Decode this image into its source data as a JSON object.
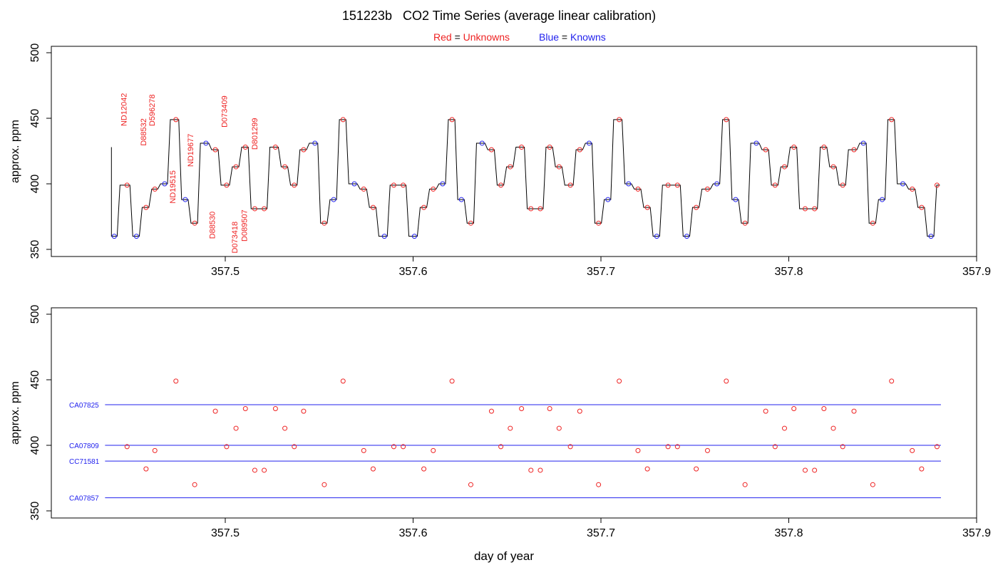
{
  "title": "151223b   CO2 Time Series (average linear calibration)",
  "legend": {
    "unknowns": {
      "color_word": "Red",
      "eq": " = ",
      "label": "Unknowns",
      "color": "#ee2222"
    },
    "knowns": {
      "color_word": "Blue",
      "eq": " = ",
      "label": "Knowns",
      "color": "#2222ee"
    }
  },
  "colors": {
    "unknown": "#ee2222",
    "known": "#2222ee",
    "trace": "#000000",
    "axis": "#000000"
  },
  "chart_data": [
    {
      "type": "line",
      "title": "",
      "xlabel": "",
      "ylabel": "approx. ppm",
      "xlim": [
        357.4,
        357.9
      ],
      "ylim": [
        345,
        502
      ],
      "xticks": [
        "357.5",
        "357.6",
        "357.7",
        "357.8",
        "357.9"
      ],
      "yticks": [
        "350",
        "400",
        "450",
        "500"
      ],
      "levels": [
        {
          "start": 357.4394,
          "end": 357.4432,
          "value": 360,
          "kind": "known"
        },
        {
          "start": 357.4432,
          "end": 357.45,
          "value": 399,
          "kind": "unknown"
        },
        {
          "start": 357.45,
          "end": 357.455,
          "value": 360,
          "kind": "known"
        },
        {
          "start": 357.455,
          "end": 357.4601,
          "value": 382,
          "kind": "unknown"
        },
        {
          "start": 357.4601,
          "end": 357.4648,
          "value": 396,
          "kind": "unknown"
        },
        {
          "start": 357.4648,
          "end": 357.47,
          "value": 400,
          "kind": "known"
        },
        {
          "start": 357.47,
          "end": 357.476,
          "value": 449,
          "kind": "unknown"
        },
        {
          "start": 357.476,
          "end": 357.481,
          "value": 388,
          "kind": "known"
        },
        {
          "start": 357.481,
          "end": 357.486,
          "value": 370,
          "kind": "unknown"
        },
        {
          "start": 357.486,
          "end": 357.492,
          "value": 431,
          "kind": "known"
        },
        {
          "start": 357.492,
          "end": 357.497,
          "value": 426,
          "kind": "unknown"
        },
        {
          "start": 357.497,
          "end": 357.503,
          "value": 399,
          "kind": "unknown"
        },
        {
          "start": 357.503,
          "end": 357.508,
          "value": 413,
          "kind": "unknown"
        },
        {
          "start": 357.508,
          "end": 357.513,
          "value": 428,
          "kind": "unknown"
        },
        {
          "start": 357.513,
          "end": 357.518,
          "value": 381,
          "kind": "unknown"
        },
        {
          "start": 357.518,
          "end": 357.523,
          "value": 381,
          "kind": "unknown"
        },
        {
          "start": 357.523,
          "end": 357.529,
          "value": 428,
          "kind": "unknown"
        },
        {
          "start": 357.529,
          "end": 357.534,
          "value": 413,
          "kind": "unknown"
        },
        {
          "start": 357.534,
          "end": 357.539,
          "value": 399,
          "kind": "unknown"
        },
        {
          "start": 357.539,
          "end": 357.544,
          "value": 426,
          "kind": "unknown"
        },
        {
          "start": 357.544,
          "end": 357.55,
          "value": 431,
          "kind": "known"
        },
        {
          "start": 357.55,
          "end": 357.555,
          "value": 370,
          "kind": "unknown"
        },
        {
          "start": 357.555,
          "end": 357.56,
          "value": 388,
          "kind": "known"
        },
        {
          "start": 357.56,
          "end": 357.565,
          "value": 449,
          "kind": "unknown"
        },
        {
          "start": 357.565,
          "end": 357.571,
          "value": 400,
          "kind": "known"
        },
        {
          "start": 357.571,
          "end": 357.576,
          "value": 396,
          "kind": "unknown"
        },
        {
          "start": 357.576,
          "end": 357.581,
          "value": 382,
          "kind": "unknown"
        },
        {
          "start": 357.581,
          "end": 357.587,
          "value": 360,
          "kind": "known"
        },
        {
          "start": 357.587,
          "end": 357.592,
          "value": 399,
          "kind": "unknown"
        },
        {
          "start": 357.592,
          "end": 357.597,
          "value": 399,
          "kind": "unknown"
        },
        {
          "start": 357.597,
          "end": 357.603,
          "value": 360,
          "kind": "known"
        },
        {
          "start": 357.603,
          "end": 357.608,
          "value": 382,
          "kind": "unknown"
        },
        {
          "start": 357.608,
          "end": 357.613,
          "value": 396,
          "kind": "unknown"
        },
        {
          "start": 357.613,
          "end": 357.618,
          "value": 400,
          "kind": "known"
        },
        {
          "start": 357.618,
          "end": 357.623,
          "value": 449,
          "kind": "unknown"
        },
        {
          "start": 357.623,
          "end": 357.628,
          "value": 388,
          "kind": "known"
        },
        {
          "start": 357.628,
          "end": 357.633,
          "value": 370,
          "kind": "unknown"
        },
        {
          "start": 357.633,
          "end": 357.639,
          "value": 431,
          "kind": "known"
        },
        {
          "start": 357.639,
          "end": 357.644,
          "value": 426,
          "kind": "unknown"
        },
        {
          "start": 357.644,
          "end": 357.649,
          "value": 399,
          "kind": "unknown"
        },
        {
          "start": 357.649,
          "end": 357.654,
          "value": 413,
          "kind": "unknown"
        },
        {
          "start": 357.654,
          "end": 357.66,
          "value": 428,
          "kind": "unknown"
        },
        {
          "start": 357.66,
          "end": 357.665,
          "value": 381,
          "kind": "unknown"
        },
        {
          "start": 357.665,
          "end": 357.67,
          "value": 381,
          "kind": "unknown"
        },
        {
          "start": 357.67,
          "end": 357.675,
          "value": 428,
          "kind": "unknown"
        },
        {
          "start": 357.675,
          "end": 357.68,
          "value": 413,
          "kind": "unknown"
        },
        {
          "start": 357.68,
          "end": 357.686,
          "value": 399,
          "kind": "unknown"
        },
        {
          "start": 357.686,
          "end": 357.691,
          "value": 426,
          "kind": "unknown"
        },
        {
          "start": 357.691,
          "end": 357.696,
          "value": 431,
          "kind": "known"
        },
        {
          "start": 357.696,
          "end": 357.701,
          "value": 370,
          "kind": "unknown"
        },
        {
          "start": 357.701,
          "end": 357.706,
          "value": 388,
          "kind": "known"
        },
        {
          "start": 357.706,
          "end": 357.712,
          "value": 449,
          "kind": "unknown"
        },
        {
          "start": 357.712,
          "end": 357.717,
          "value": 400,
          "kind": "known"
        },
        {
          "start": 357.717,
          "end": 357.722,
          "value": 396,
          "kind": "unknown"
        },
        {
          "start": 357.722,
          "end": 357.727,
          "value": 382,
          "kind": "unknown"
        },
        {
          "start": 357.727,
          "end": 357.732,
          "value": 360,
          "kind": "known"
        },
        {
          "start": 357.732,
          "end": 357.738,
          "value": 399,
          "kind": "unknown"
        },
        {
          "start": 357.738,
          "end": 357.743,
          "value": 399,
          "kind": "unknown"
        },
        {
          "start": 357.743,
          "end": 357.748,
          "value": 360,
          "kind": "known"
        },
        {
          "start": 357.748,
          "end": 357.753,
          "value": 382,
          "kind": "unknown"
        },
        {
          "start": 357.753,
          "end": 357.759,
          "value": 396,
          "kind": "unknown"
        },
        {
          "start": 357.759,
          "end": 357.764,
          "value": 400,
          "kind": "known"
        },
        {
          "start": 357.764,
          "end": 357.769,
          "value": 449,
          "kind": "unknown"
        },
        {
          "start": 357.769,
          "end": 357.774,
          "value": 388,
          "kind": "known"
        },
        {
          "start": 357.774,
          "end": 357.779,
          "value": 370,
          "kind": "unknown"
        },
        {
          "start": 357.779,
          "end": 357.785,
          "value": 431,
          "kind": "known"
        },
        {
          "start": 357.785,
          "end": 357.79,
          "value": 426,
          "kind": "unknown"
        },
        {
          "start": 357.79,
          "end": 357.795,
          "value": 399,
          "kind": "unknown"
        },
        {
          "start": 357.795,
          "end": 357.8,
          "value": 413,
          "kind": "unknown"
        },
        {
          "start": 357.8,
          "end": 357.805,
          "value": 428,
          "kind": "unknown"
        },
        {
          "start": 357.805,
          "end": 357.811,
          "value": 381,
          "kind": "unknown"
        },
        {
          "start": 357.811,
          "end": 357.816,
          "value": 381,
          "kind": "unknown"
        },
        {
          "start": 357.816,
          "end": 357.821,
          "value": 428,
          "kind": "unknown"
        },
        {
          "start": 357.821,
          "end": 357.826,
          "value": 413,
          "kind": "unknown"
        },
        {
          "start": 357.826,
          "end": 357.831,
          "value": 399,
          "kind": "unknown"
        },
        {
          "start": 357.831,
          "end": 357.837,
          "value": 426,
          "kind": "unknown"
        },
        {
          "start": 357.837,
          "end": 357.842,
          "value": 431,
          "kind": "known"
        },
        {
          "start": 357.842,
          "end": 357.847,
          "value": 370,
          "kind": "unknown"
        },
        {
          "start": 357.847,
          "end": 357.852,
          "value": 388,
          "kind": "known"
        },
        {
          "start": 357.852,
          "end": 357.857,
          "value": 449,
          "kind": "unknown"
        },
        {
          "start": 357.857,
          "end": 357.863,
          "value": 400,
          "kind": "known"
        },
        {
          "start": 357.863,
          "end": 357.868,
          "value": 396,
          "kind": "unknown"
        },
        {
          "start": 357.868,
          "end": 357.873,
          "value": 382,
          "kind": "unknown"
        },
        {
          "start": 357.873,
          "end": 357.878,
          "value": 360,
          "kind": "known"
        },
        {
          "start": 357.878,
          "end": 357.8812,
          "value": 399,
          "kind": "unknown"
        }
      ],
      "trace_start_value": 428,
      "sample_labels": [
        {
          "text": "ND12042",
          "x": 357.4475,
          "y": 444
        },
        {
          "text": "D88532",
          "x": 357.4578,
          "y": 429
        },
        {
          "text": "D596278",
          "x": 357.4625,
          "y": 444
        },
        {
          "text": "ND19515",
          "x": 357.4735,
          "y": 385
        },
        {
          "text": "ND19677",
          "x": 357.483,
          "y": 413
        },
        {
          "text": "D88530",
          "x": 357.4945,
          "y": 358
        },
        {
          "text": "D073409",
          "x": 357.501,
          "y": 443
        },
        {
          "text": "D073418",
          "x": 357.5065,
          "y": 347
        },
        {
          "text": "D089507",
          "x": 357.5115,
          "y": 356
        },
        {
          "text": "D801299",
          "x": 357.517,
          "y": 426
        }
      ]
    },
    {
      "type": "scatter",
      "title": "",
      "xlabel": "day of year",
      "ylabel": "approx. ppm",
      "xlim": [
        357.4,
        357.9
      ],
      "ylim": [
        345,
        502
      ],
      "xticks": [
        "357.5",
        "357.6",
        "357.7",
        "357.8",
        "357.9"
      ],
      "yticks": [
        "350",
        "400",
        "450",
        "500"
      ],
      "reference_lines": [
        {
          "name": "CA07825",
          "value": 431,
          "x_start": 357.436,
          "x_end": 357.881
        },
        {
          "name": "CA07809",
          "value": 400,
          "x_start": 357.436,
          "x_end": 357.881
        },
        {
          "name": "CC71581",
          "value": 388,
          "x_start": 357.436,
          "x_end": 357.881
        },
        {
          "name": "CA07857",
          "value": 360,
          "x_start": 357.436,
          "x_end": 357.881
        }
      ]
    }
  ]
}
